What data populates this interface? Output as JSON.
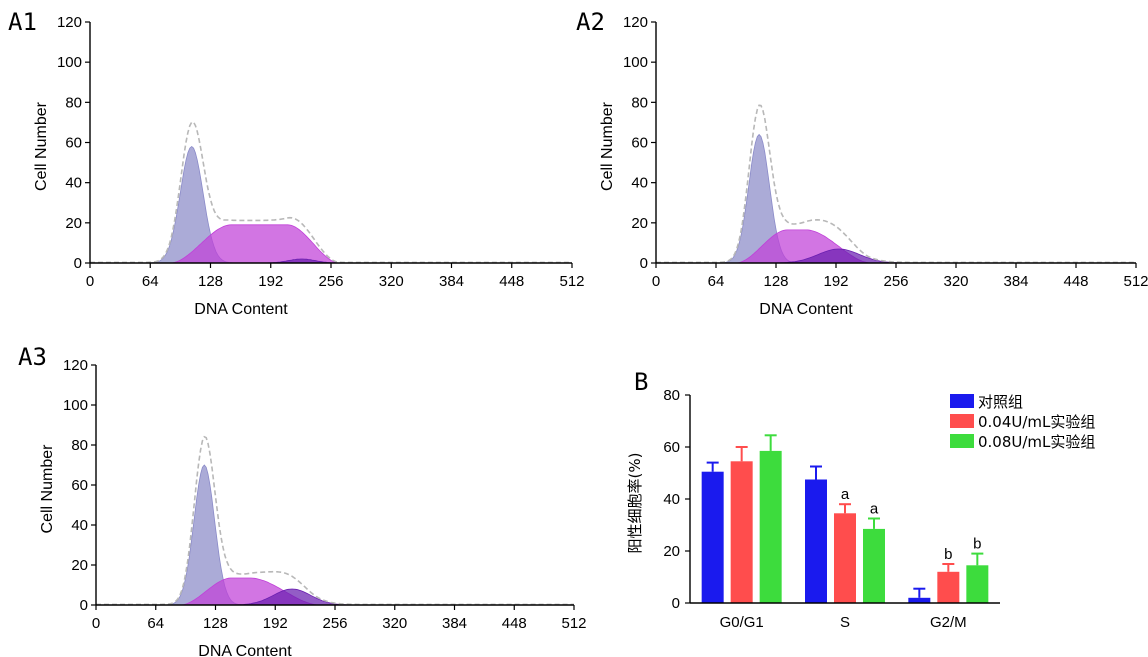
{
  "colors": {
    "g1_fill": "#8a8ac8",
    "s_fill": "#c040d8",
    "g2_fill": "#6a1fb0",
    "envelope": "#b8b8b8",
    "control": "#1a1aee",
    "low_dose": "#ff4d4d",
    "high_dose": "#3ddc3d"
  },
  "chart_data": [
    {
      "id": "A1",
      "label": "A1",
      "type": "area",
      "xlabel": "DNA Content",
      "ylabel": "Cell Number",
      "xlim": [
        0,
        512
      ],
      "ylim": [
        0,
        120
      ],
      "xticks": [
        0,
        64,
        128,
        192,
        256,
        320,
        384,
        448,
        512
      ],
      "yticks": [
        0,
        20,
        40,
        60,
        80,
        100,
        120
      ],
      "series": [
        {
          "role": "G0/G1",
          "color": "#8a8ac8",
          "gauss": {
            "mu": 108,
            "sigma": 12,
            "peak": 58
          }
        },
        {
          "role": "S",
          "color": "#c040d8",
          "trap": {
            "start": 85,
            "rise_end": 150,
            "fall_start": 210,
            "end": 265,
            "height": 19
          }
        },
        {
          "role": "G2/M",
          "color": "#6a1fb0",
          "gauss": {
            "mu": 225,
            "sigma": 14,
            "peak": 2
          }
        },
        {
          "role": "envelope",
          "color": "#b8b8b8",
          "envelope": true
        }
      ]
    },
    {
      "id": "A2",
      "label": "A2",
      "type": "area",
      "xlabel": "DNA Content",
      "ylabel": "Cell Number",
      "xlim": [
        0,
        512
      ],
      "ylim": [
        0,
        120
      ],
      "xticks": [
        0,
        64,
        128,
        192,
        256,
        320,
        384,
        448,
        512
      ],
      "yticks": [
        0,
        20,
        40,
        60,
        80,
        100,
        120
      ],
      "series": [
        {
          "role": "G0/G1",
          "color": "#8a8ac8",
          "gauss": {
            "mu": 110,
            "sigma": 11,
            "peak": 64
          }
        },
        {
          "role": "S",
          "color": "#c040d8",
          "trap": {
            "start": 85,
            "rise_end": 140,
            "fall_start": 160,
            "end": 230,
            "height": 16.5
          }
        },
        {
          "role": "G2/M",
          "color": "#6a1fb0",
          "gauss": {
            "mu": 195,
            "sigma": 22,
            "peak": 7
          }
        },
        {
          "role": "envelope",
          "color": "#b8b8b8",
          "envelope": true
        }
      ]
    },
    {
      "id": "A3",
      "label": "A3",
      "type": "area",
      "xlabel": "DNA Content",
      "ylabel": "Cell Number",
      "xlim": [
        0,
        512
      ],
      "ylim": [
        0,
        120
      ],
      "xticks": [
        0,
        64,
        128,
        192,
        256,
        320,
        384,
        448,
        512
      ],
      "yticks": [
        0,
        20,
        40,
        60,
        80,
        100,
        120
      ],
      "series": [
        {
          "role": "G0/G1",
          "color": "#8a8ac8",
          "gauss": {
            "mu": 116,
            "sigma": 11,
            "peak": 70
          }
        },
        {
          "role": "S",
          "color": "#c040d8",
          "trap": {
            "start": 90,
            "rise_end": 145,
            "fall_start": 165,
            "end": 240,
            "height": 13.5
          }
        },
        {
          "role": "G2/M",
          "color": "#6a1fb0",
          "gauss": {
            "mu": 210,
            "sigma": 20,
            "peak": 8
          }
        },
        {
          "role": "envelope",
          "color": "#b8b8b8",
          "envelope": true
        }
      ]
    },
    {
      "id": "B",
      "label": "B",
      "type": "bar",
      "ylabel": "阳性细胞率(%)",
      "xlabel": "",
      "ylim": [
        0,
        80
      ],
      "yticks": [
        0,
        20,
        40,
        60,
        80
      ],
      "categories": [
        "G0/G1",
        "S",
        "G2/M"
      ],
      "series": [
        {
          "name": "对照组",
          "color": "#1a1aee",
          "values": [
            50.5,
            47.5,
            2
          ],
          "errors": [
            3.5,
            5,
            3.5
          ],
          "annotations": [
            "",
            "",
            ""
          ]
        },
        {
          "name": "0.04U/mL实验组",
          "color": "#ff4d4d",
          "values": [
            54.5,
            34.5,
            12
          ],
          "errors": [
            5.5,
            3.5,
            3
          ],
          "annotations": [
            "",
            "a",
            "b"
          ]
        },
        {
          "name": "0.08U/mL实验组",
          "color": "#3ddc3d",
          "values": [
            58.5,
            28.5,
            14.5
          ],
          "errors": [
            6,
            4,
            4.5
          ],
          "annotations": [
            "",
            "a",
            "b"
          ]
        }
      ]
    }
  ]
}
